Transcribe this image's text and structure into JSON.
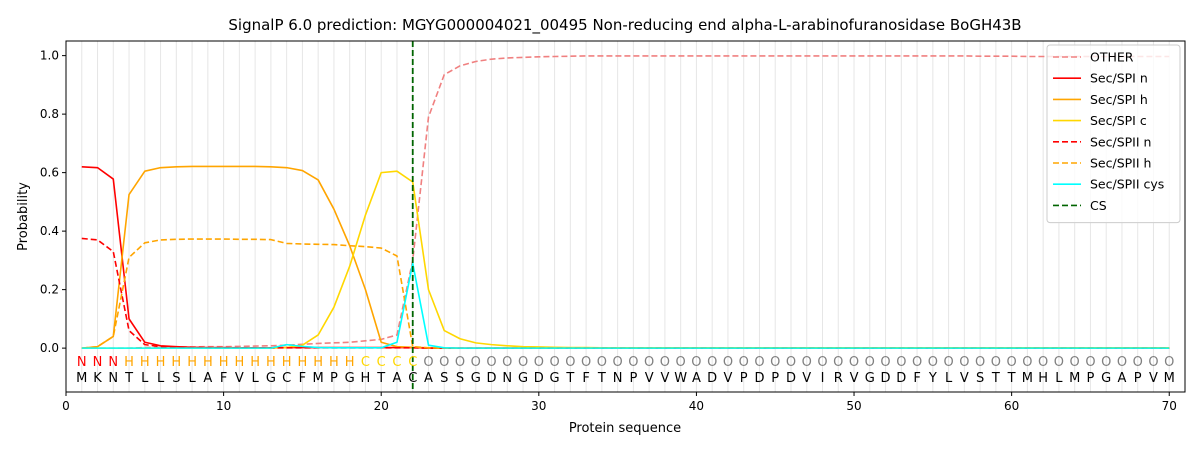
{
  "chart_data": {
    "type": "line",
    "title": "SignalP 6.0 prediction: MGYG000004021_00495 Non-reducing end alpha-L-arabinofuranosidase BoGH43B",
    "xlabel": "Protein sequence",
    "ylabel": "Probability",
    "xlim": [
      0,
      71
    ],
    "ylim": [
      -0.15,
      1.05
    ],
    "x_ticks": [
      0,
      10,
      20,
      30,
      40,
      50,
      60,
      70
    ],
    "y_ticks": [
      0.0,
      0.2,
      0.4,
      0.6,
      0.8,
      1.0
    ],
    "grid": "vertical lines at each residue position",
    "legend_position": "top-right",
    "sequence": "MKNTLLSLAFVLGCFMPGHTACASSGDNGDGTFTNPVVWADVPDPDVIRVGDDFYLVSTTMHLMPGAPVM",
    "labels": "NNNHHHHHHHHHHHHHHHCCCCOOOOOOOOOOOOOOOOOOOOOOOOOOOOOOOOOOOOOOOOOOOOOOOO",
    "label_colors": {
      "N": "#ff0000",
      "H": "#ffa500",
      "C": "#ffd700",
      "O": "#808080"
    },
    "cleavage_site": 22,
    "series": [
      {
        "name": "OTHER",
        "color": "#f08080",
        "dash": "dashed",
        "values": [
          0.0,
          0.0,
          0.0,
          0.0,
          0.002,
          0.003,
          0.004,
          0.004,
          0.005,
          0.005,
          0.006,
          0.007,
          0.008,
          0.01,
          0.013,
          0.016,
          0.018,
          0.02,
          0.025,
          0.03,
          0.045,
          0.3,
          0.79,
          0.935,
          0.965,
          0.98,
          0.988,
          0.992,
          0.994,
          0.996,
          0.997,
          0.998,
          0.999,
          0.999,
          0.999,
          0.999,
          0.999,
          0.999,
          0.999,
          0.999,
          0.999,
          0.999,
          0.999,
          0.999,
          0.999,
          0.999,
          0.999,
          0.999,
          0.999,
          0.999,
          0.999,
          0.999,
          0.999,
          0.999,
          0.999,
          0.999,
          0.999,
          0.998,
          0.998,
          0.998,
          0.997,
          0.997,
          0.997,
          0.997,
          0.997,
          0.997,
          0.997,
          0.997,
          0.997,
          0.997
        ]
      },
      {
        "name": "Sec/SPI n",
        "color": "#ff0000",
        "dash": "solid",
        "values": [
          0.62,
          0.617,
          0.578,
          0.1,
          0.02,
          0.008,
          0.005,
          0.003,
          0.002,
          0.002,
          0.001,
          0.001,
          0.001,
          0.002,
          0.002,
          0.002,
          0.002,
          0.002,
          0.002,
          0.002,
          0.002,
          0.002,
          0.0,
          0.0,
          0.0,
          0.0,
          0.0,
          0.0,
          0.0,
          0.0,
          0.0,
          0.0,
          0.0,
          0.0,
          0.0,
          0.0,
          0.0,
          0.0,
          0.0,
          0.0,
          0.0,
          0.0,
          0.0,
          0.0,
          0.0,
          0.0,
          0.0,
          0.0,
          0.0,
          0.0,
          0.0,
          0.0,
          0.0,
          0.0,
          0.0,
          0.0,
          0.0,
          0.0,
          0.0,
          0.0,
          0.0,
          0.0,
          0.0,
          0.0,
          0.0,
          0.0,
          0.0,
          0.0,
          0.0,
          0.0
        ]
      },
      {
        "name": "Sec/SPI h",
        "color": "#ffa500",
        "dash": "solid",
        "values": [
          0.0,
          0.005,
          0.04,
          0.525,
          0.605,
          0.617,
          0.62,
          0.621,
          0.621,
          0.621,
          0.621,
          0.621,
          0.62,
          0.617,
          0.607,
          0.575,
          0.475,
          0.35,
          0.2,
          0.02,
          0.005,
          0.003,
          0.001,
          0.0,
          0.0,
          0.0,
          0.0,
          0.0,
          0.0,
          0.0,
          0.0,
          0.0,
          0.0,
          0.0,
          0.0,
          0.0,
          0.0,
          0.0,
          0.0,
          0.0,
          0.0,
          0.0,
          0.0,
          0.0,
          0.0,
          0.0,
          0.0,
          0.0,
          0.0,
          0.0,
          0.0,
          0.0,
          0.0,
          0.0,
          0.0,
          0.0,
          0.0,
          0.0,
          0.0,
          0.0,
          0.0,
          0.0,
          0.0,
          0.0,
          0.0,
          0.0,
          0.0,
          0.0,
          0.0,
          0.0
        ]
      },
      {
        "name": "Sec/SPI c",
        "color": "#ffd700",
        "dash": "solid",
        "values": [
          0.0,
          0.0,
          0.0,
          0.0,
          0.0,
          0.0,
          0.0,
          0.0,
          0.0,
          0.0,
          0.0,
          0.0,
          0.0,
          0.002,
          0.01,
          0.045,
          0.14,
          0.28,
          0.455,
          0.6,
          0.605,
          0.568,
          0.2,
          0.06,
          0.032,
          0.018,
          0.012,
          0.008,
          0.005,
          0.004,
          0.003,
          0.002,
          0.002,
          0.001,
          0.001,
          0.001,
          0.001,
          0.001,
          0.001,
          0.001,
          0.001,
          0.001,
          0.001,
          0.001,
          0.001,
          0.001,
          0.001,
          0.001,
          0.001,
          0.001,
          0.001,
          0.001,
          0.001,
          0.001,
          0.001,
          0.001,
          0.001,
          0.001,
          0.001,
          0.001,
          0.001,
          0.001,
          0.001,
          0.001,
          0.001,
          0.001,
          0.001,
          0.001,
          0.001,
          0.001
        ]
      },
      {
        "name": "Sec/SPII n",
        "color": "#ff0000",
        "dash": "dashed",
        "values": [
          0.375,
          0.37,
          0.33,
          0.06,
          0.012,
          0.005,
          0.003,
          0.002,
          0.001,
          0.001,
          0.001,
          0.001,
          0.001,
          0.001,
          0.001,
          0.001,
          0.001,
          0.001,
          0.001,
          0.001,
          0.001,
          0.001,
          0.0,
          0.0,
          0.0,
          0.0,
          0.0,
          0.0,
          0.0,
          0.0,
          0.0,
          0.0,
          0.0,
          0.0,
          0.0,
          0.0,
          0.0,
          0.0,
          0.0,
          0.0,
          0.0,
          0.0,
          0.0,
          0.0,
          0.0,
          0.0,
          0.0,
          0.0,
          0.0,
          0.0,
          0.0,
          0.0,
          0.0,
          0.0,
          0.0,
          0.0,
          0.0,
          0.0,
          0.0,
          0.0,
          0.0,
          0.0,
          0.0,
          0.0,
          0.0,
          0.0,
          0.0,
          0.0,
          0.0,
          0.0
        ]
      },
      {
        "name": "Sec/SPII h",
        "color": "#ffa500",
        "dash": "dashed",
        "values": [
          0.0,
          0.005,
          0.04,
          0.31,
          0.36,
          0.37,
          0.372,
          0.373,
          0.373,
          0.373,
          0.372,
          0.372,
          0.371,
          0.358,
          0.356,
          0.355,
          0.354,
          0.35,
          0.347,
          0.342,
          0.315,
          0.005,
          0.001,
          0.0,
          0.0,
          0.0,
          0.0,
          0.0,
          0.0,
          0.0,
          0.0,
          0.0,
          0.0,
          0.0,
          0.0,
          0.0,
          0.0,
          0.0,
          0.0,
          0.0,
          0.0,
          0.0,
          0.0,
          0.0,
          0.0,
          0.0,
          0.0,
          0.0,
          0.0,
          0.0,
          0.0,
          0.0,
          0.0,
          0.0,
          0.0,
          0.0,
          0.0,
          0.0,
          0.0,
          0.0,
          0.0,
          0.0,
          0.0,
          0.0,
          0.0,
          0.0,
          0.0,
          0.0,
          0.0,
          0.0
        ]
      },
      {
        "name": "Sec/SPII cys",
        "color": "#00ffff",
        "dash": "solid",
        "values": [
          0.0,
          0.0,
          0.0,
          0.0,
          0.0,
          0.0,
          0.0,
          0.0,
          0.0,
          0.0,
          0.0,
          0.0,
          0.0,
          0.012,
          0.006,
          0.002,
          0.001,
          0.001,
          0.001,
          0.001,
          0.02,
          0.29,
          0.01,
          0.001,
          0.0,
          0.0,
          0.0,
          0.0,
          0.0,
          0.0,
          0.0,
          0.0,
          0.0,
          0.0,
          0.0,
          0.0,
          0.0,
          0.0,
          0.0,
          0.0,
          0.0,
          0.0,
          0.0,
          0.0,
          0.0,
          0.0,
          0.0,
          0.0,
          0.0,
          0.0,
          0.0,
          0.0,
          0.0,
          0.0,
          0.0,
          0.0,
          0.0,
          0.0,
          0.0,
          0.0,
          0.0,
          0.0,
          0.0,
          0.0,
          0.0,
          0.0,
          0.0,
          0.0,
          0.0,
          0.0
        ]
      }
    ],
    "cs_legend": {
      "name": "CS",
      "color": "#006400",
      "dash": "dashed"
    }
  }
}
